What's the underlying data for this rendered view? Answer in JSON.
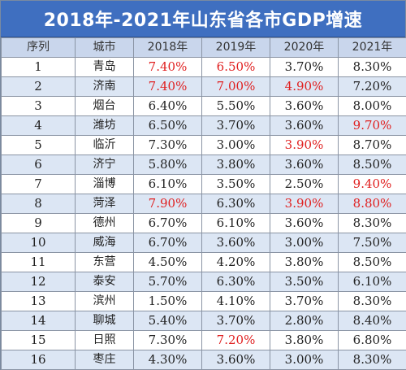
{
  "title": "2018年-2021年山东省各市GDP增速",
  "headers": [
    "序列",
    "城市",
    "2018年",
    "2019年",
    "2020年",
    "2021年"
  ],
  "highlight_color": "#e02020",
  "rows": [
    {
      "idx": "1",
      "city": "青岛",
      "v": [
        "7.40%",
        "6.50%",
        "3.70%",
        "8.30%"
      ],
      "hl": [
        true,
        true,
        false,
        false
      ]
    },
    {
      "idx": "2",
      "city": "济南",
      "v": [
        "7.40%",
        "7.00%",
        "4.90%",
        "7.20%"
      ],
      "hl": [
        true,
        true,
        true,
        false
      ]
    },
    {
      "idx": "3",
      "city": "烟台",
      "v": [
        "6.40%",
        "5.50%",
        "3.60%",
        "8.00%"
      ],
      "hl": [
        false,
        false,
        false,
        false
      ]
    },
    {
      "idx": "4",
      "city": "潍坊",
      "v": [
        "6.50%",
        "3.70%",
        "3.60%",
        "9.70%"
      ],
      "hl": [
        false,
        false,
        false,
        true
      ]
    },
    {
      "idx": "5",
      "city": "临沂",
      "v": [
        "7.30%",
        "3.00%",
        "3.90%",
        "8.70%"
      ],
      "hl": [
        false,
        false,
        true,
        false
      ]
    },
    {
      "idx": "6",
      "city": "济宁",
      "v": [
        "5.80%",
        "3.80%",
        "3.60%",
        "8.50%"
      ],
      "hl": [
        false,
        false,
        false,
        false
      ]
    },
    {
      "idx": "7",
      "city": "淄博",
      "v": [
        "6.10%",
        "3.50%",
        "2.50%",
        "9.40%"
      ],
      "hl": [
        false,
        false,
        false,
        true
      ]
    },
    {
      "idx": "8",
      "city": "菏泽",
      "v": [
        "7.90%",
        "6.30%",
        "3.90%",
        "8.80%"
      ],
      "hl": [
        true,
        false,
        true,
        true
      ]
    },
    {
      "idx": "9",
      "city": "德州",
      "v": [
        "6.70%",
        "6.10%",
        "3.60%",
        "8.30%"
      ],
      "hl": [
        false,
        false,
        false,
        false
      ]
    },
    {
      "idx": "10",
      "city": "威海",
      "v": [
        "6.70%",
        "3.60%",
        "3.00%",
        "7.50%"
      ],
      "hl": [
        false,
        false,
        false,
        false
      ]
    },
    {
      "idx": "11",
      "city": "东营",
      "v": [
        "4.50%",
        "4.20%",
        "3.80%",
        "8.50%"
      ],
      "hl": [
        false,
        false,
        false,
        false
      ]
    },
    {
      "idx": "12",
      "city": "泰安",
      "v": [
        "5.70%",
        "6.30%",
        "3.50%",
        "6.10%"
      ],
      "hl": [
        false,
        false,
        false,
        false
      ]
    },
    {
      "idx": "13",
      "city": "滨州",
      "v": [
        "1.50%",
        "4.10%",
        "3.70%",
        "8.30%"
      ],
      "hl": [
        false,
        false,
        false,
        false
      ]
    },
    {
      "idx": "14",
      "city": "聊城",
      "v": [
        "5.40%",
        "3.70%",
        "2.80%",
        "8.40%"
      ],
      "hl": [
        false,
        false,
        false,
        false
      ]
    },
    {
      "idx": "15",
      "city": "日照",
      "v": [
        "7.30%",
        "7.20%",
        "3.80%",
        "6.80%"
      ],
      "hl": [
        false,
        true,
        false,
        false
      ]
    },
    {
      "idx": "16",
      "city": "枣庄",
      "v": [
        "4.30%",
        "3.60%",
        "3.00%",
        "8.30%"
      ],
      "hl": [
        false,
        false,
        false,
        false
      ]
    }
  ]
}
